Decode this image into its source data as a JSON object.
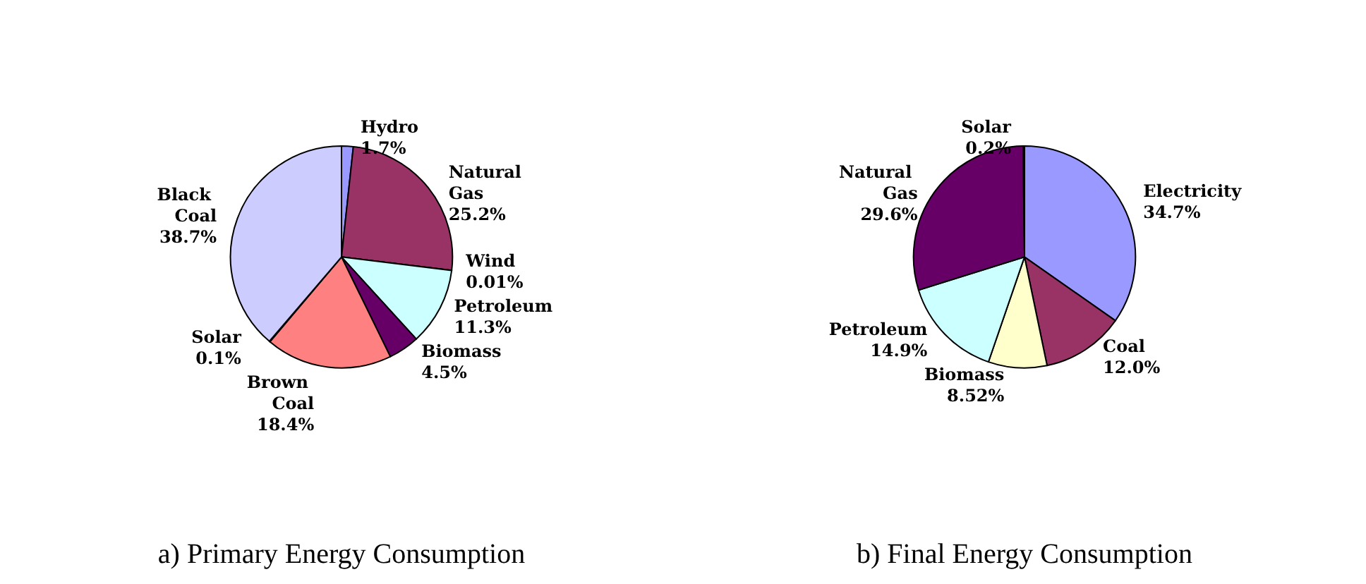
{
  "chart_data": [
    {
      "type": "pie",
      "title": "a) Primary Energy Consumption",
      "categories": [
        "Hydro",
        "Natural Gas",
        "Wind",
        "Petroleum",
        "Biomass",
        "Brown Coal",
        "Solar",
        "Black Coal"
      ],
      "values": [
        1.7,
        25.2,
        0.01,
        11.3,
        4.5,
        18.4,
        0.1,
        38.7
      ],
      "value_labels": [
        "1.7%",
        "25.2%",
        "0.01%",
        "11.3%",
        "4.5%",
        "18.4%",
        "0.1%",
        "38.7%"
      ],
      "colors": [
        "#9999ff",
        "#993366",
        "#ffffcc",
        "#ccffff",
        "#660066",
        "#ff8080",
        "#0066cc",
        "#ccccff"
      ],
      "legend": false
    },
    {
      "type": "pie",
      "title": "b) Final Energy Consumption",
      "categories": [
        "Electricity",
        "Coal",
        "Biomass",
        "Petroleum",
        "Natural Gas",
        "Solar"
      ],
      "values": [
        34.7,
        12.0,
        8.52,
        14.9,
        29.6,
        0.2
      ],
      "value_labels": [
        "34.7%",
        "12.0%",
        "8.52%",
        "14.9%",
        "29.6%",
        "0.2%"
      ],
      "colors": [
        "#9999ff",
        "#993366",
        "#ffffcc",
        "#ccffff",
        "#660066",
        "#ff8080"
      ],
      "legend": false
    }
  ]
}
